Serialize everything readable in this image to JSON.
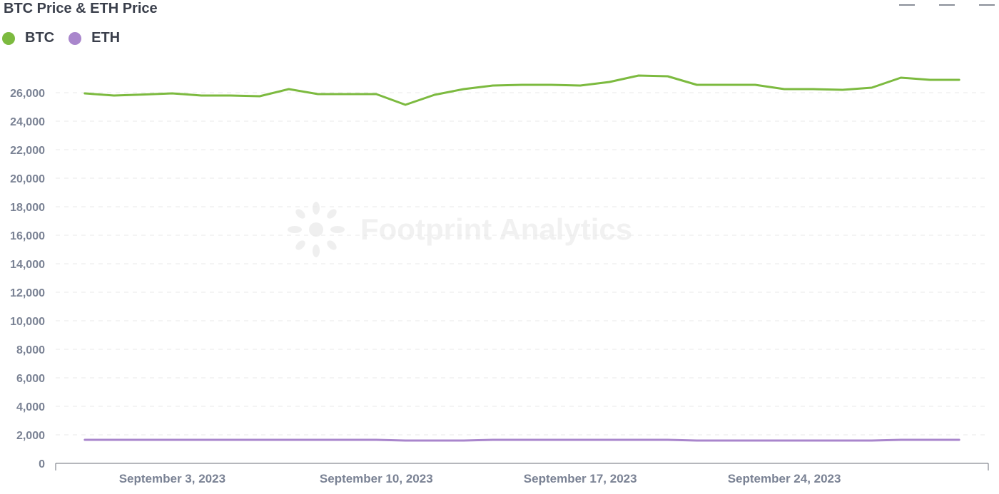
{
  "colors": {
    "btc": "#7cba3f",
    "eth": "#a986cc",
    "axis_text": "#7a8294",
    "grid": "#e8e8e8"
  },
  "watermark": {
    "text": "Footprint Analytics",
    "icon": "footprint-logo-icon"
  },
  "toolbar": {
    "icons": [
      "expand-icon",
      "info-icon",
      "menu-icon"
    ]
  },
  "chart_data": {
    "type": "line",
    "title": "BTC Price & ETH Price",
    "xlabel": "",
    "ylabel": "",
    "ylim": [
      0,
      26000
    ],
    "y_ticks": [
      0,
      2000,
      4000,
      6000,
      8000,
      10000,
      12000,
      14000,
      16000,
      18000,
      20000,
      22000,
      24000,
      26000
    ],
    "y_tick_labels": [
      "0",
      "2,000",
      "4,000",
      "6,000",
      "8,000",
      "10,000",
      "12,000",
      "14,000",
      "16,000",
      "18,000",
      "20,000",
      "22,000",
      "24,000",
      "26,000"
    ],
    "x": [
      "2023-08-31",
      "2023-09-01",
      "2023-09-02",
      "2023-09-03",
      "2023-09-04",
      "2023-09-05",
      "2023-09-06",
      "2023-09-07",
      "2023-09-08",
      "2023-09-09",
      "2023-09-10",
      "2023-09-11",
      "2023-09-12",
      "2023-09-13",
      "2023-09-14",
      "2023-09-15",
      "2023-09-16",
      "2023-09-17",
      "2023-09-18",
      "2023-09-19",
      "2023-09-20",
      "2023-09-21",
      "2023-09-22",
      "2023-09-23",
      "2023-09-24",
      "2023-09-25",
      "2023-09-26",
      "2023-09-27",
      "2023-09-28",
      "2023-09-29",
      "2023-09-30"
    ],
    "x_range": [
      "2023-08-30",
      "2023-10-01"
    ],
    "x_ticks": [
      "2023-09-03",
      "2023-09-10",
      "2023-09-17",
      "2023-09-24"
    ],
    "x_tick_labels": [
      "September 3, 2023",
      "September 10, 2023",
      "September 17, 2023",
      "September 24, 2023"
    ],
    "series": [
      {
        "name": "BTC",
        "values": [
          25950,
          25800,
          25870,
          25950,
          25800,
          25800,
          25750,
          26250,
          25900,
          25900,
          25900,
          25150,
          25850,
          26250,
          26500,
          26550,
          26550,
          26500,
          26750,
          27200,
          27150,
          26550,
          26550,
          26550,
          26250,
          26250,
          26200,
          26350,
          27050,
          26900,
          26900
        ]
      },
      {
        "name": "ETH",
        "values": [
          1650,
          1650,
          1650,
          1650,
          1650,
          1650,
          1650,
          1650,
          1650,
          1650,
          1650,
          1600,
          1600,
          1600,
          1650,
          1650,
          1650,
          1650,
          1650,
          1650,
          1650,
          1600,
          1600,
          1600,
          1600,
          1600,
          1600,
          1600,
          1650,
          1650,
          1650
        ]
      }
    ],
    "grid": true,
    "legend_position": "top-left"
  }
}
